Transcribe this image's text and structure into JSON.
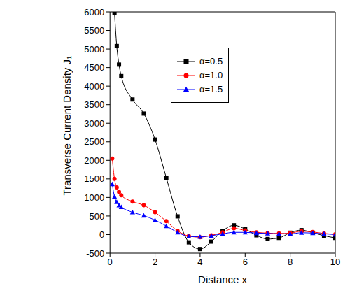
{
  "chart_data": {
    "type": "line",
    "x_label": "Distance x",
    "y_label": "Transverse Current Density J₁",
    "x": [
      0.1,
      0.2,
      0.3,
      0.4,
      0.5,
      1.0,
      1.5,
      2.0,
      2.5,
      3.0,
      3.5,
      4.0,
      4.5,
      5.0,
      5.5,
      6.0,
      6.5,
      7.0,
      7.5,
      8.0,
      8.5,
      9.0,
      9.5,
      10.0
    ],
    "series": [
      {
        "name": "α=0.5",
        "color": "#000000",
        "marker": "square",
        "values": [
          null,
          5980,
          5080,
          4580,
          4270,
          3640,
          3260,
          2560,
          1530,
          490,
          -210,
          -390,
          -190,
          100,
          250,
          150,
          -20,
          -120,
          -90,
          50,
          120,
          50,
          -30,
          -90
        ]
      },
      {
        "name": "α=1.0",
        "color": "#ff0000",
        "marker": "circle",
        "values": [
          2050,
          1500,
          1270,
          1150,
          1060,
          890,
          790,
          600,
          360,
          100,
          -40,
          -70,
          -20,
          60,
          170,
          110,
          60,
          40,
          30,
          40,
          90,
          70,
          30,
          10
        ]
      },
      {
        "name": "α=1.5",
        "color": "#0000ff",
        "marker": "triangle",
        "values": [
          1360,
          1020,
          880,
          790,
          740,
          600,
          510,
          390,
          230,
          60,
          -50,
          -60,
          -30,
          20,
          60,
          60,
          40,
          30,
          20,
          20,
          50,
          40,
          20,
          0
        ]
      }
    ],
    "xlim": [
      0,
      10
    ],
    "xticks": [
      0,
      2,
      4,
      6,
      8,
      10
    ],
    "ylim": [
      -500,
      6000
    ],
    "yticks": [
      -500,
      0,
      500,
      1000,
      1500,
      2000,
      2500,
      3000,
      3500,
      4000,
      4500,
      5000,
      5500,
      6000
    ],
    "grid": false,
    "legend": "upper center"
  }
}
